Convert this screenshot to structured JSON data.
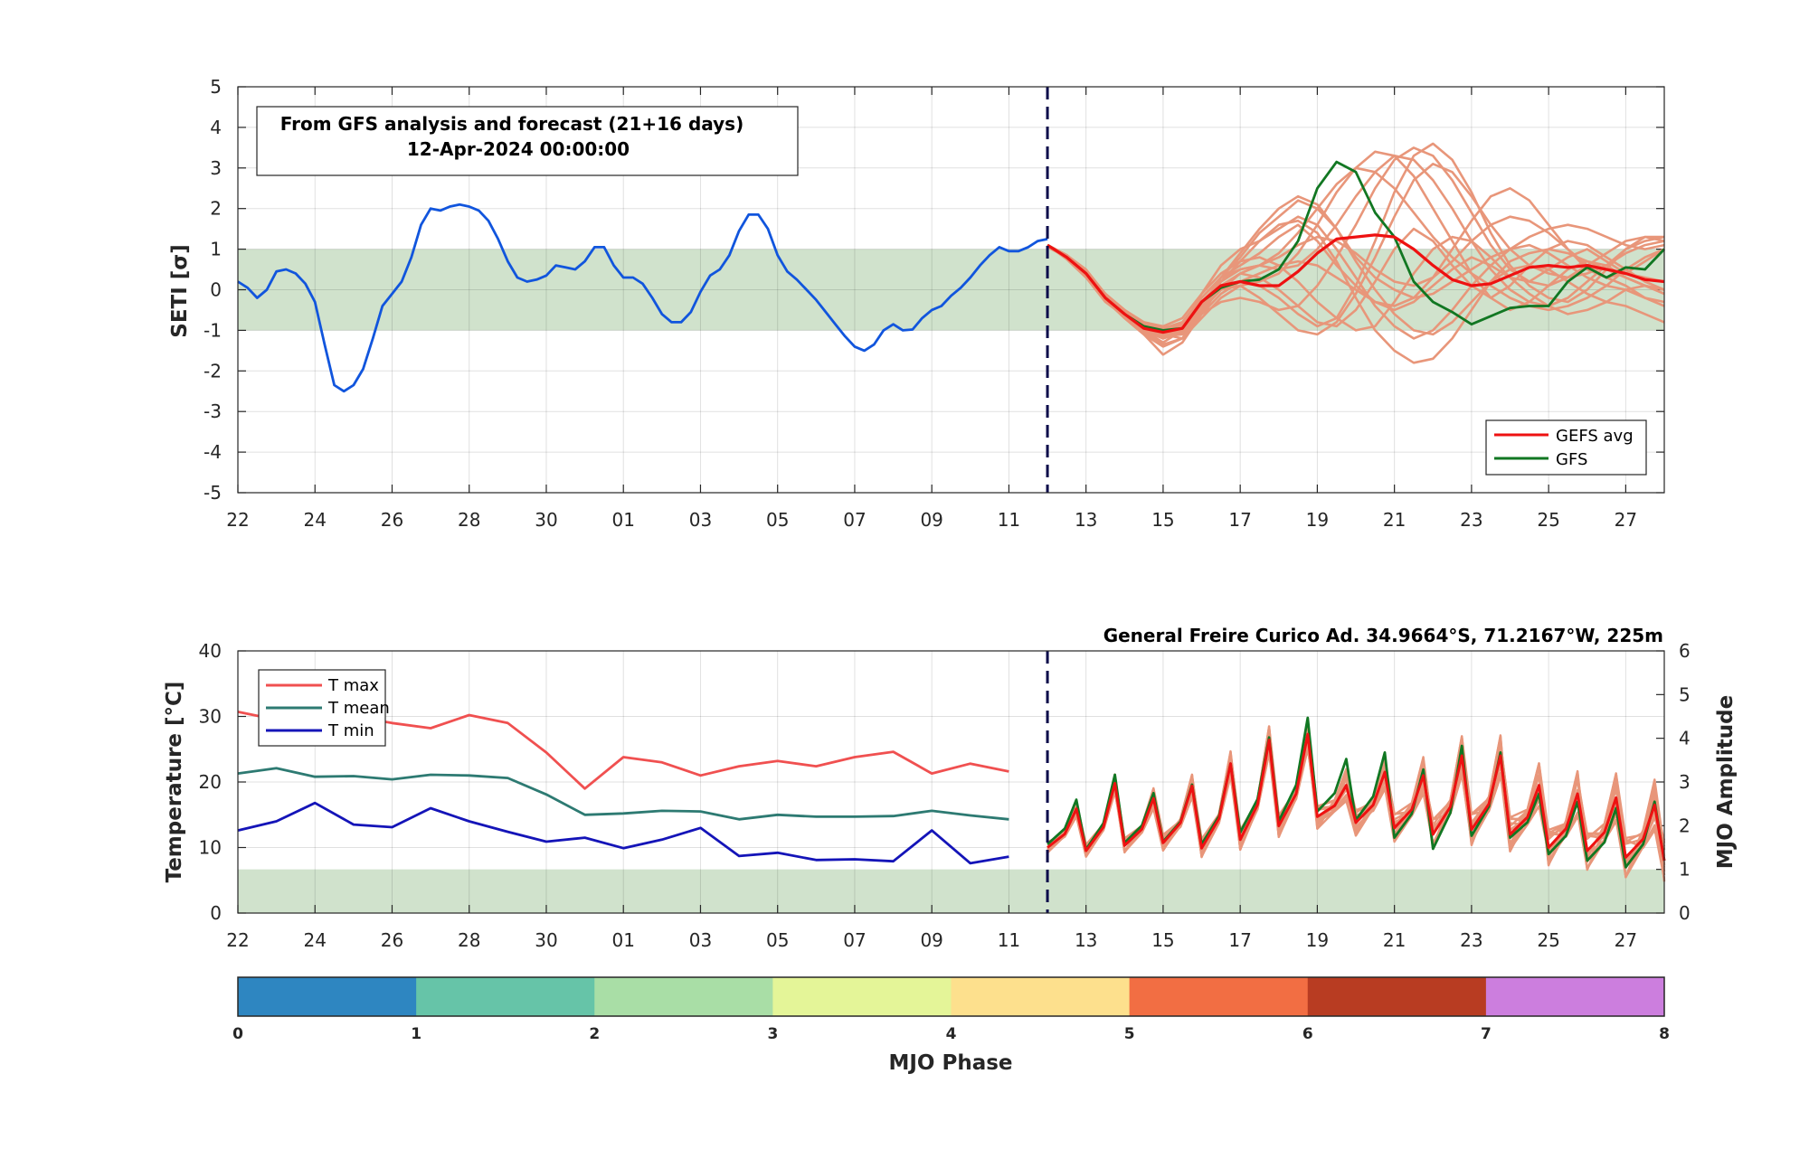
{
  "colors": {
    "analysis": "#1155dd",
    "gefs_member": "#e8967a",
    "gefs_avg": "#ee1111",
    "gfs": "#117722",
    "band": "#d0e2cc",
    "tmax": "#f05050",
    "tmean": "#2d7a72",
    "tmin": "#1414b8",
    "divider": "#0a0a4a"
  },
  "chart_data": [
    {
      "type": "line",
      "annotation": [
        "From GFS analysis and forecast (21+16 days)",
        "12-Apr-2024 00:00:00"
      ],
      "ylabel": "SETI [σ]",
      "ylim": [
        -5,
        5
      ],
      "yticks": [
        "5",
        "4",
        "3",
        "2",
        "1",
        "0",
        "-1",
        "-2",
        "-3",
        "-4",
        "-5"
      ],
      "xlim": [
        0,
        37
      ],
      "xticks": [
        "22",
        "24",
        "26",
        "28",
        "30",
        "01",
        "03",
        "05",
        "07",
        "09",
        "11",
        "13",
        "15",
        "17",
        "19",
        "21",
        "23",
        "25",
        "27"
      ],
      "band": [
        -1,
        1
      ],
      "forecast_start_day": 21,
      "grid": true,
      "legend_position": "bottom-right",
      "legend": [
        "GEFS avg",
        "GFS"
      ],
      "analysis": {
        "x": [
          0,
          0.25,
          0.5,
          0.75,
          1,
          1.25,
          1.5,
          1.75,
          2,
          2.25,
          2.5,
          2.75,
          3,
          3.25,
          3.5,
          3.75,
          4,
          4.25,
          4.5,
          4.75,
          5,
          5.25,
          5.5,
          5.75,
          6,
          6.25,
          6.5,
          6.75,
          7,
          7.25,
          7.5,
          7.75,
          8,
          8.25,
          8.5,
          8.75,
          9,
          9.25,
          9.5,
          9.75,
          10,
          10.25,
          10.5,
          10.75,
          11,
          11.25,
          11.5,
          11.75,
          12,
          12.25,
          12.5,
          12.75,
          13,
          13.25,
          13.5,
          13.75,
          14,
          14.25,
          14.5,
          14.75,
          15,
          15.25,
          15.5,
          15.75,
          16,
          16.25,
          16.5,
          16.75,
          17,
          17.25,
          17.5,
          17.75,
          18,
          18.25,
          18.5,
          18.75,
          19,
          19.25,
          19.5,
          19.75,
          20,
          20.25,
          20.5,
          20.75,
          21
        ],
        "y": [
          0.2,
          0.05,
          -0.2,
          0.0,
          0.45,
          0.5,
          0.4,
          0.15,
          -0.3,
          -1.35,
          -2.35,
          -2.5,
          -2.35,
          -1.95,
          -1.2,
          -0.4,
          -0.1,
          0.2,
          0.8,
          1.6,
          2.0,
          1.95,
          2.05,
          2.1,
          2.05,
          1.95,
          1.7,
          1.25,
          0.7,
          0.3,
          0.2,
          0.25,
          0.35,
          0.6,
          0.55,
          0.5,
          0.7,
          1.05,
          1.05,
          0.6,
          0.3,
          0.3,
          0.15,
          -0.2,
          -0.6,
          -0.8,
          -0.8,
          -0.55,
          -0.05,
          0.35,
          0.5,
          0.85,
          1.45,
          1.85,
          1.85,
          1.5,
          0.85,
          0.45,
          0.25,
          0.0,
          -0.25,
          -0.55,
          -0.85,
          -1.15,
          -1.4,
          -1.5,
          -1.35,
          -1.0,
          -0.85,
          -1.0,
          -0.98,
          -0.7,
          -0.5,
          -0.4,
          -0.15,
          0.05,
          0.3,
          0.6,
          0.85,
          1.05,
          0.95,
          0.95,
          1.05,
          1.2,
          1.25
        ]
      },
      "gefs_avg": {
        "x": [
          21,
          21.5,
          22,
          22.5,
          23,
          23.5,
          24,
          24.5,
          25,
          25.5,
          26,
          26.5,
          27,
          27.5,
          28,
          28.5,
          29,
          29.5,
          30,
          30.5,
          31,
          31.5,
          32,
          32.5,
          33,
          33.5,
          34,
          34.5,
          35,
          35.5,
          36,
          36.5,
          37
        ],
        "y": [
          1.1,
          0.8,
          0.4,
          -0.2,
          -0.6,
          -0.95,
          -1.05,
          -0.95,
          -0.3,
          0.1,
          0.2,
          0.1,
          0.1,
          0.45,
          0.9,
          1.25,
          1.3,
          1.35,
          1.3,
          1.0,
          0.6,
          0.25,
          0.1,
          0.15,
          0.35,
          0.55,
          0.6,
          0.55,
          0.6,
          0.5,
          0.4,
          0.25,
          0.2
        ]
      },
      "gfs": {
        "x": [
          21,
          21.5,
          22,
          22.5,
          23,
          23.5,
          24,
          24.5,
          25,
          25.5,
          26,
          26.5,
          27,
          27.5,
          28,
          28.5,
          29,
          29.5,
          30,
          30.5,
          31,
          31.5,
          32,
          32.5,
          33,
          33.5,
          34,
          34.5,
          35,
          35.5,
          36,
          36.5,
          37
        ],
        "y": [
          1.1,
          0.8,
          0.4,
          -0.2,
          -0.6,
          -0.9,
          -1.0,
          -0.95,
          -0.3,
          0.05,
          0.2,
          0.25,
          0.5,
          1.2,
          2.5,
          3.15,
          2.9,
          1.9,
          1.3,
          0.2,
          -0.3,
          -0.55,
          -0.85,
          -0.65,
          -0.45,
          -0.4,
          -0.4,
          0.2,
          0.55,
          0.3,
          0.55,
          0.5,
          1.0
        ]
      },
      "members": [
        [
          1.1,
          0.85,
          0.45,
          -0.1,
          -0.6,
          -1.0,
          -1.3,
          -1.0,
          -0.4,
          0.3,
          0.6,
          0.9,
          1.3,
          1.6,
          1.2,
          0.6,
          0.1,
          -0.3,
          -0.5,
          -0.3,
          0.1,
          0.5,
          0.8,
          0.6,
          0.3,
          0.2,
          0.5,
          0.8,
          1.0,
          0.7,
          0.4,
          0.3,
          0.2
        ],
        [
          1.1,
          0.8,
          0.35,
          -0.25,
          -0.7,
          -1.1,
          -1.6,
          -1.3,
          -0.6,
          0.1,
          0.4,
          0.3,
          0.0,
          -0.4,
          -0.8,
          -0.9,
          -0.5,
          0.2,
          1.0,
          1.5,
          1.2,
          0.6,
          0.1,
          -0.2,
          0.1,
          0.6,
          1.0,
          1.2,
          1.1,
          0.8,
          0.5,
          0.2,
          0.0
        ],
        [
          1.1,
          0.75,
          0.3,
          -0.3,
          -0.65,
          -0.9,
          -1.0,
          -0.8,
          -0.2,
          0.3,
          0.8,
          1.4,
          1.8,
          2.2,
          2.0,
          1.5,
          0.8,
          0.3,
          0.0,
          -0.2,
          -0.1,
          0.2,
          0.5,
          0.8,
          1.0,
          1.1,
          0.9,
          0.6,
          0.3,
          0.1,
          0.0,
          -0.2,
          -0.3
        ],
        [
          1.05,
          0.8,
          0.4,
          -0.2,
          -0.55,
          -0.85,
          -1.1,
          -1.2,
          -0.7,
          -0.2,
          0.1,
          0.2,
          0.4,
          0.9,
          1.6,
          2.4,
          3.0,
          3.4,
          3.3,
          2.8,
          2.0,
          1.2,
          0.4,
          -0.2,
          -0.5,
          -0.3,
          0.1,
          0.5,
          0.7,
          0.6,
          0.3,
          0.1,
          -0.1
        ],
        [
          1.1,
          0.85,
          0.5,
          -0.1,
          -0.5,
          -0.9,
          -1.2,
          -1.0,
          -0.5,
          0.0,
          0.2,
          0.1,
          -0.2,
          -0.6,
          -0.9,
          -0.7,
          0.1,
          1.2,
          2.4,
          3.3,
          3.6,
          3.2,
          2.4,
          1.4,
          0.6,
          0.1,
          -0.2,
          -0.3,
          0.0,
          0.5,
          1.0,
          1.3,
          1.2
        ],
        [
          1.1,
          0.8,
          0.4,
          -0.2,
          -0.6,
          -1.0,
          -1.2,
          -0.9,
          -0.1,
          0.6,
          1.0,
          1.2,
          1.5,
          1.8,
          1.6,
          1.0,
          0.3,
          -0.4,
          -0.9,
          -1.2,
          -1.0,
          -0.5,
          0.1,
          0.6,
          1.0,
          1.3,
          1.5,
          1.6,
          1.5,
          1.3,
          1.1,
          1.0,
          1.1
        ],
        [
          1.1,
          0.85,
          0.45,
          -0.15,
          -0.6,
          -0.95,
          -1.1,
          -1.0,
          -0.6,
          -0.3,
          -0.2,
          -0.3,
          -0.5,
          -0.4,
          0.1,
          0.8,
          1.6,
          2.5,
          3.2,
          3.5,
          3.3,
          2.7,
          1.9,
          1.1,
          0.5,
          0.2,
          0.1,
          0.3,
          0.6,
          0.9,
          1.2,
          1.3,
          1.3
        ],
        [
          1.1,
          0.8,
          0.4,
          -0.2,
          -0.55,
          -0.8,
          -0.9,
          -0.7,
          -0.1,
          0.4,
          0.7,
          0.8,
          0.6,
          0.2,
          -0.3,
          -0.7,
          -1.0,
          -0.9,
          -0.3,
          0.4,
          1.0,
          1.3,
          1.2,
          0.8,
          0.3,
          -0.1,
          -0.4,
          -0.6,
          -0.5,
          -0.3,
          0.0,
          0.1,
          0.0
        ],
        [
          1.1,
          0.8,
          0.4,
          -0.25,
          -0.65,
          -1.05,
          -1.35,
          -1.2,
          -0.5,
          0.2,
          0.7,
          1.2,
          1.6,
          1.7,
          1.4,
          0.7,
          -0.2,
          -1.0,
          -1.5,
          -1.8,
          -1.7,
          -1.2,
          -0.5,
          0.2,
          0.7,
          0.9,
          1.0,
          0.9,
          0.7,
          0.5,
          0.3,
          0.1,
          0.0
        ],
        [
          1.1,
          0.85,
          0.45,
          -0.1,
          -0.5,
          -0.85,
          -1.0,
          -0.85,
          -0.3,
          0.2,
          0.5,
          0.6,
          0.9,
          1.4,
          2.0,
          2.6,
          3.0,
          2.9,
          2.5,
          1.9,
          1.3,
          0.8,
          0.4,
          0.1,
          -0.2,
          -0.4,
          -0.5,
          -0.4,
          -0.2,
          0.1,
          0.5,
          0.8,
          1.0
        ],
        [
          1.1,
          0.8,
          0.4,
          -0.2,
          -0.6,
          -0.95,
          -1.15,
          -1.1,
          -0.6,
          -0.1,
          0.2,
          0.4,
          0.6,
          0.7,
          0.6,
          0.3,
          0.0,
          -0.3,
          -0.4,
          -0.2,
          0.3,
          1.0,
          1.7,
          2.3,
          2.5,
          2.2,
          1.6,
          1.0,
          0.5,
          0.3,
          0.4,
          0.7,
          1.0
        ],
        [
          1.1,
          0.85,
          0.4,
          -0.15,
          -0.55,
          -0.9,
          -1.05,
          -0.9,
          -0.4,
          0.0,
          0.1,
          -0.2,
          -0.6,
          -1.0,
          -1.1,
          -0.8,
          -0.1,
          0.8,
          1.8,
          2.7,
          3.1,
          2.9,
          2.3,
          1.6,
          1.0,
          0.6,
          0.4,
          0.3,
          0.4,
          0.6,
          0.9,
          1.1,
          1.2
        ],
        [
          1.1,
          0.8,
          0.35,
          -0.25,
          -0.7,
          -1.1,
          -1.4,
          -1.2,
          -0.5,
          0.3,
          0.9,
          1.5,
          2.0,
          2.3,
          2.1,
          1.5,
          0.7,
          0.0,
          -0.6,
          -1.0,
          -1.1,
          -0.8,
          -0.3,
          0.2,
          0.5,
          0.6,
          0.5,
          0.2,
          -0.1,
          -0.3,
          -0.4,
          -0.6,
          -0.8
        ],
        [
          1.1,
          0.85,
          0.45,
          -0.1,
          -0.5,
          -0.8,
          -0.95,
          -0.8,
          -0.2,
          0.3,
          0.5,
          0.6,
          0.5,
          0.6,
          1.0,
          1.6,
          2.3,
          2.9,
          3.3,
          3.2,
          2.7,
          2.0,
          1.2,
          0.5,
          0.0,
          -0.3,
          -0.4,
          -0.2,
          0.2,
          0.6,
          1.0,
          1.2,
          1.3
        ],
        [
          1.1,
          0.8,
          0.4,
          -0.2,
          -0.6,
          -1.0,
          -1.2,
          -1.05,
          -0.5,
          0.0,
          0.4,
          0.6,
          0.8,
          1.1,
          1.3,
          1.2,
          0.9,
          0.5,
          0.2,
          0.1,
          0.3,
          0.7,
          1.2,
          1.6,
          1.8,
          1.7,
          1.4,
          1.0,
          0.6,
          0.3,
          0.1,
          -0.2,
          -0.4
        ]
      ]
    },
    {
      "type": "line",
      "title": "General Freire Curico Ad. 34.9664°S, 71.2167°W, 225m",
      "ylabel": "Temperature [°C]",
      "ylabel_right": "MJO Amplitude",
      "ylim": [
        0,
        40
      ],
      "ylim_right": [
        0,
        6
      ],
      "yticks": [
        "40",
        "30",
        "20",
        "10",
        "0"
      ],
      "yticks_right": [
        "6",
        "5",
        "4",
        "3",
        "2",
        "1",
        "0"
      ],
      "xlim": [
        0,
        37
      ],
      "xticks": [
        "22",
        "24",
        "26",
        "28",
        "30",
        "01",
        "03",
        "05",
        "07",
        "09",
        "11",
        "13",
        "15",
        "17",
        "19",
        "21",
        "23",
        "25",
        "27"
      ],
      "mjo_amplitude_band": [
        0,
        1
      ],
      "forecast_start_day": 21,
      "grid": true,
      "legend_position": "top-left",
      "legend": [
        "T max",
        "T mean",
        "T min"
      ],
      "tmax": {
        "x": [
          0,
          1,
          2,
          3,
          4,
          5,
          6,
          7,
          8,
          9,
          10,
          11,
          12,
          13,
          14,
          15,
          16,
          17,
          18,
          19,
          20
        ],
        "y": [
          30.7,
          29.5,
          29.5,
          30.0,
          29.0,
          28.2,
          30.2,
          29.0,
          24.5,
          19.0,
          23.8,
          23.0,
          21.0,
          22.4,
          23.2,
          22.4,
          23.8,
          24.6,
          21.3,
          22.8,
          21.6
        ]
      },
      "tmean": {
        "x": [
          0,
          1,
          2,
          3,
          4,
          5,
          6,
          7,
          8,
          9,
          10,
          11,
          12,
          13,
          14,
          15,
          16,
          17,
          18,
          19,
          20
        ],
        "y": [
          21.3,
          22.1,
          20.8,
          20.9,
          20.4,
          21.1,
          21.0,
          20.6,
          18.1,
          15.0,
          15.2,
          15.6,
          15.5,
          14.3,
          15.0,
          14.7,
          14.7,
          14.8,
          15.6,
          14.9,
          14.3
        ]
      },
      "tmin": {
        "x": [
          0,
          1,
          2,
          3,
          4,
          5,
          6,
          7,
          8,
          9,
          10,
          11,
          12,
          13,
          14,
          15,
          16,
          17,
          18,
          19,
          20
        ],
        "y": [
          12.6,
          14.0,
          16.8,
          13.5,
          13.1,
          16.0,
          14.0,
          12.4,
          10.9,
          11.5,
          9.9,
          11.2,
          13.0,
          8.7,
          9.2,
          8.1,
          8.2,
          7.9,
          12.6,
          7.6,
          8.6
        ]
      },
      "forecast_peaks_tmax": [
        15.9,
        19.8,
        17.5,
        19.4,
        22.8,
        26.4,
        27.3,
        19.5,
        21.5,
        21.0,
        24.0,
        24.0,
        19.5,
        18.2,
        17.6,
        16.5
      ],
      "forecast_troughs_tmin": [
        10.0,
        9.5,
        10.3,
        10.7,
        9.9,
        11.2,
        13.3,
        14.7,
        13.8,
        13.0,
        12.0,
        12.7,
        12.0,
        10.0,
        9.5,
        8.5,
        8.0
      ],
      "gfs_peaks": [
        17.3,
        21.1,
        18.3,
        19.6,
        22.8,
        26.8,
        29.8,
        23.5,
        24.5,
        21.9,
        25.5,
        24.5,
        18.2,
        17.0,
        16.0,
        17.0
      ],
      "gfs_troughs": [
        10.5,
        9.7,
        10.7,
        10.9,
        10.5,
        12.3,
        14.0,
        15.5,
        14.2,
        11.5,
        9.8,
        11.8,
        11.5,
        9.0,
        8.0,
        7.0,
        8.0
      ]
    },
    {
      "type": "colorbar",
      "xlabel": "MJO Phase",
      "ticks": [
        "0",
        "1",
        "2",
        "3",
        "4",
        "5",
        "6",
        "7",
        "8"
      ],
      "segment_colors": [
        "#2e86c1",
        "#66c4a8",
        "#a9dea6",
        "#e4f598",
        "#fde08d",
        "#f26e43",
        "#b83c22",
        "#cc7ede"
      ]
    }
  ]
}
